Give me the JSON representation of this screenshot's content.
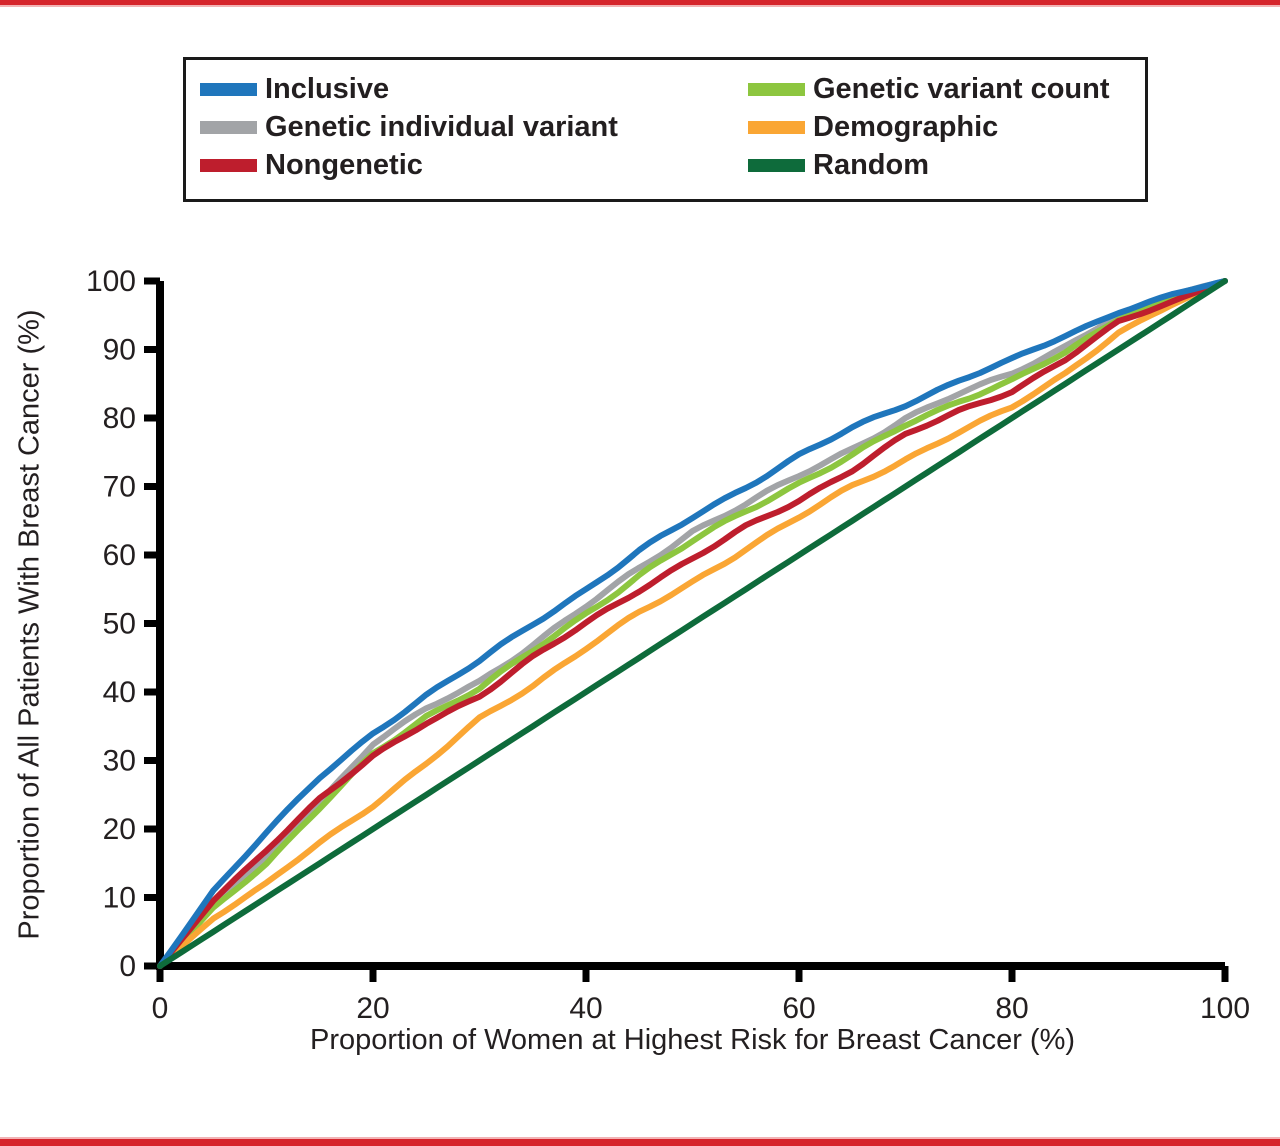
{
  "page": {
    "accent_bar_color": "#D6252C"
  },
  "chart_data": {
    "type": "line",
    "title": "",
    "xlabel": "Proportion of Women at Highest Risk for Breast Cancer (%)",
    "ylabel": "Proportion of All Patients With Breast Cancer (%)",
    "xlim": [
      0,
      100
    ],
    "ylim": [
      0,
      100
    ],
    "x_ticks": [
      0,
      20,
      40,
      60,
      80,
      100
    ],
    "y_ticks": [
      0,
      10,
      20,
      30,
      40,
      50,
      60,
      70,
      80,
      90,
      100
    ],
    "grid": false,
    "legend_position": "top",
    "x": [
      0,
      5,
      10,
      15,
      20,
      25,
      30,
      35,
      40,
      45,
      50,
      55,
      60,
      65,
      70,
      75,
      80,
      85,
      90,
      95,
      100
    ],
    "series": [
      {
        "name": "Inclusive",
        "color": "#1F76BC",
        "values": [
          0,
          11,
          19.5,
          27.5,
          34,
          39.5,
          44.5,
          50,
          55,
          60.5,
          65.5,
          70,
          74.5,
          78.5,
          82,
          85.5,
          88.5,
          92,
          95.5,
          98,
          100
        ]
      },
      {
        "name": "Genetic individual variant",
        "color": "#A2A4A7",
        "values": [
          0,
          9,
          15.5,
          24,
          32.5,
          37.5,
          41.5,
          47,
          52.5,
          58,
          63.5,
          67.5,
          71.5,
          75.5,
          80,
          83.5,
          86.5,
          90.5,
          95,
          98,
          100
        ]
      },
      {
        "name": "Nongenetic",
        "color": "#BE1E2D",
        "values": [
          0,
          9.5,
          17,
          24.5,
          30.5,
          35.5,
          39.5,
          45,
          50,
          55,
          59.5,
          64,
          68,
          72.5,
          77.5,
          81,
          84,
          88.5,
          94,
          97,
          100
        ]
      },
      {
        "name": "Genetic variant count",
        "color": "#8DC63F",
        "values": [
          0,
          8.5,
          15,
          23,
          31,
          36.5,
          40.5,
          46,
          51.5,
          57,
          62,
          66.5,
          70.5,
          74.5,
          79,
          82.5,
          85.5,
          89.5,
          94.5,
          97.5,
          100
        ]
      },
      {
        "name": "Demographic",
        "color": "#FAA634",
        "values": [
          0,
          7,
          12,
          18,
          23.5,
          29.5,
          36,
          41,
          46.5,
          51.5,
          56,
          61,
          65.5,
          70,
          74,
          78,
          81.5,
          86.5,
          92.5,
          96.5,
          100
        ]
      },
      {
        "name": "Random",
        "color": "#0E6B3B",
        "values": [
          0,
          5,
          10,
          15,
          20,
          25,
          30,
          35,
          40,
          45,
          50,
          55,
          60,
          65,
          70,
          75,
          80,
          85,
          90,
          95,
          100
        ]
      }
    ]
  }
}
